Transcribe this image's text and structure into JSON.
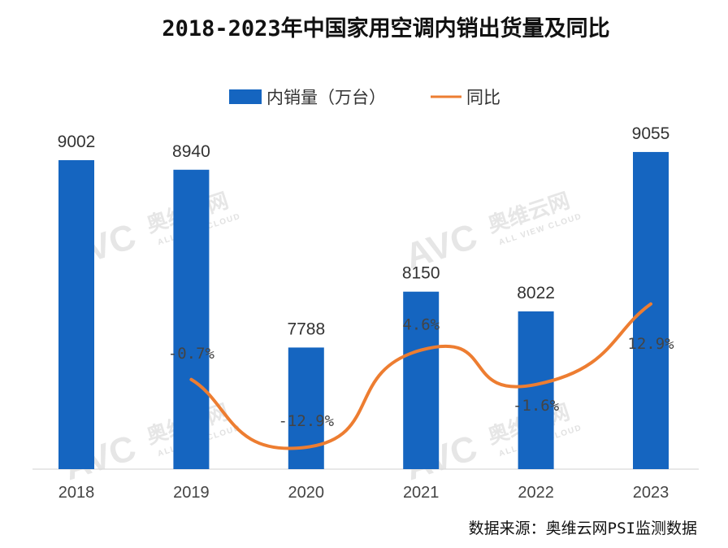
{
  "chart_data": {
    "type": "bar",
    "title": "2018-2023年中国家用空调内销出货量及同比",
    "categories": [
      "2018",
      "2019",
      "2020",
      "2021",
      "2022",
      "2023"
    ],
    "series": [
      {
        "name": "内销量（万台）",
        "kind": "bar",
        "color": "#1565c0",
        "values": [
          9002,
          8940,
          7788,
          8150,
          8022,
          9055
        ],
        "labels": [
          "9002",
          "8940",
          "7788",
          "8150",
          "8022",
          "9055"
        ]
      },
      {
        "name": "同比",
        "kind": "line",
        "color": "#ed7d31",
        "smooth": true,
        "values": [
          null,
          -0.7,
          -12.9,
          4.6,
          -1.6,
          12.9
        ],
        "labels": [
          null,
          "-0.7%",
          "-12.9%",
          "4.6%",
          "-1.6%",
          "12.9%"
        ]
      }
    ],
    "legend": "top-center",
    "grid": false,
    "source": "数据来源：奥维云网PSI监测数据"
  },
  "watermark": {
    "brand": "AVC",
    "cn": "奥维云网",
    "en": "ALL VIEW CLOUD"
  }
}
